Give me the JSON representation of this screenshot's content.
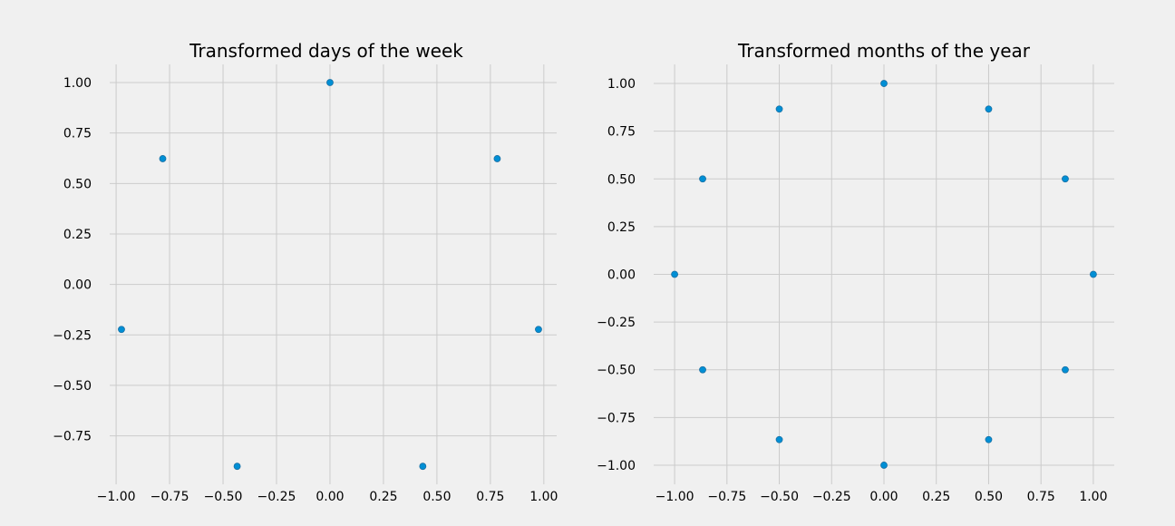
{
  "chart_data": [
    {
      "type": "scatter",
      "title": "Transformed days of the week",
      "xlabel": "",
      "ylabel": "",
      "xlim": [
        -1.03,
        1.06
      ],
      "ylim": [
        -0.99,
        1.09
      ],
      "xticks": [
        -1.0,
        -0.75,
        -0.5,
        -0.25,
        0.0,
        0.25,
        0.5,
        0.75,
        1.0
      ],
      "xtick_labels": [
        "−1.00",
        "−0.75",
        "−0.50",
        "−0.25",
        "0.00",
        "0.25",
        "0.50",
        "0.75",
        "1.00"
      ],
      "yticks": [
        -0.75,
        -0.5,
        -0.25,
        0.0,
        0.25,
        0.5,
        0.75,
        1.0
      ],
      "ytick_labels": [
        "−0.75",
        "−0.50",
        "−0.25",
        "0.00",
        "0.25",
        "0.50",
        "0.75",
        "1.00"
      ],
      "grid": true,
      "color": "#008fd5",
      "points": [
        {
          "x": 0.0,
          "y": 1.0
        },
        {
          "x": 0.782,
          "y": 0.623
        },
        {
          "x": 0.975,
          "y": -0.223
        },
        {
          "x": 0.434,
          "y": -0.901
        },
        {
          "x": -0.434,
          "y": -0.901
        },
        {
          "x": -0.975,
          "y": -0.223
        },
        {
          "x": -0.782,
          "y": 0.623
        }
      ]
    },
    {
      "type": "scatter",
      "title": "Transformed months of the year",
      "xlabel": "",
      "ylabel": "",
      "xlim": [
        -1.1,
        1.1
      ],
      "ylim": [
        -1.1,
        1.1
      ],
      "xticks": [
        -1.0,
        -0.75,
        -0.5,
        -0.25,
        0.0,
        0.25,
        0.5,
        0.75,
        1.0
      ],
      "xtick_labels": [
        "−1.00",
        "−0.75",
        "−0.50",
        "−0.25",
        "0.00",
        "0.25",
        "0.50",
        "0.75",
        "1.00"
      ],
      "yticks": [
        -1.0,
        -0.75,
        -0.5,
        -0.25,
        0.0,
        0.25,
        0.5,
        0.75,
        1.0
      ],
      "ytick_labels": [
        "−1.00",
        "−0.75",
        "−0.50",
        "−0.25",
        "0.00",
        "0.25",
        "0.50",
        "0.75",
        "1.00"
      ],
      "grid": true,
      "color": "#008fd5",
      "points": [
        {
          "x": 0.0,
          "y": 1.0
        },
        {
          "x": 0.5,
          "y": 0.866
        },
        {
          "x": 0.866,
          "y": 0.5
        },
        {
          "x": 1.0,
          "y": 0.0
        },
        {
          "x": 0.866,
          "y": -0.5
        },
        {
          "x": 0.5,
          "y": -0.866
        },
        {
          "x": 0.0,
          "y": -1.0
        },
        {
          "x": -0.5,
          "y": -0.866
        },
        {
          "x": -0.866,
          "y": -0.5
        },
        {
          "x": -1.0,
          "y": 0.0
        },
        {
          "x": -0.866,
          "y": 0.5
        },
        {
          "x": -0.5,
          "y": 0.866
        }
      ]
    }
  ]
}
